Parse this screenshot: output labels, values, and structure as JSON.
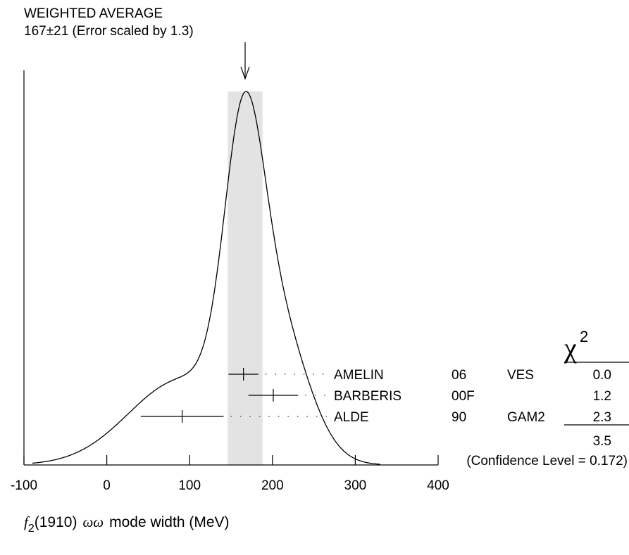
{
  "chart_data": {
    "type": "ideogram",
    "title": "WEIGHTED AVERAGE",
    "subtitle": "167±21 (Error scaled by 1.3)",
    "weighted_average": {
      "value": 167,
      "error": 21
    },
    "xlabel": {
      "particle": "f",
      "subscript": "2",
      "mass": "(1910)",
      "mode": "ωω",
      "rest": "mode width (MeV)"
    },
    "xlim": [
      -100,
      400
    ],
    "xticks": [
      "-100",
      "0",
      "100",
      "200",
      "300",
      "400"
    ],
    "measurements": [
      {
        "author": "AMELIN",
        "year": "06",
        "experiment": "VES",
        "value": 165,
        "error": 18,
        "chi2": "0.0"
      },
      {
        "author": "BARBERIS",
        "year": "00F",
        "experiment": "",
        "value": 201,
        "error": 30,
        "chi2": "1.2"
      },
      {
        "author": "ALDE",
        "year": "90",
        "experiment": "GAM2",
        "value": 91,
        "error": 50,
        "chi2": "2.3"
      }
    ],
    "chi2_header": "χ",
    "chi2_header_sup": "2",
    "chi2_total": "3.5",
    "confidence_level": "(Confidence Level = 0.172)"
  }
}
